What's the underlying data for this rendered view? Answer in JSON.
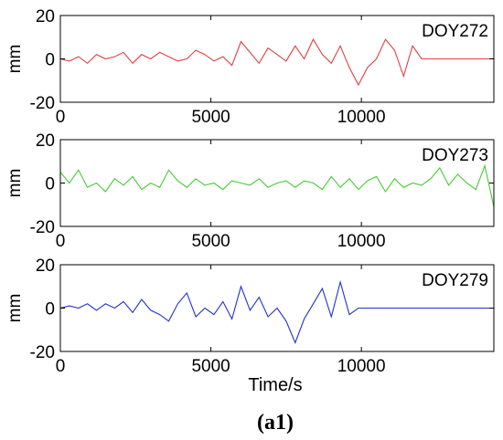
{
  "caption": "(a1)",
  "chart_data": [
    {
      "type": "line",
      "legend": "DOY272",
      "color": "#e04040",
      "ylabel": "mm",
      "xlabel": "",
      "xlim": [
        0,
        14400
      ],
      "ylim": [
        -20,
        20
      ],
      "xticks": [
        "0",
        "5000",
        "10000"
      ],
      "yticks": [
        "20",
        "0",
        "-20"
      ],
      "series": [
        {
          "x": [
            0,
            300,
            600,
            900,
            1200,
            1500,
            1800,
            2100,
            2400,
            2700,
            3000,
            3300,
            3600,
            3900,
            4200,
            4500,
            4800,
            5100,
            5400,
            5700,
            6000,
            6300,
            6600,
            6900,
            7200,
            7500,
            7800,
            8100,
            8400,
            8700,
            9000,
            9300,
            9600,
            9900,
            10200,
            10500,
            10800,
            11100,
            11400,
            11700,
            12000,
            14400
          ],
          "values": [
            0,
            -1,
            1,
            -2,
            2,
            0,
            1,
            3,
            -2,
            2,
            0,
            3,
            1,
            -1,
            0,
            4,
            2,
            -1,
            1,
            -3,
            8,
            3,
            -2,
            5,
            2,
            -1,
            6,
            0,
            9,
            2,
            -2,
            6,
            -4,
            -12,
            -4,
            0,
            9,
            4,
            -8,
            6,
            0,
            0
          ]
        }
      ]
    },
    {
      "type": "line",
      "legend": "DOY273",
      "color": "#44cc33",
      "ylabel": "mm",
      "xlabel": "",
      "xlim": [
        0,
        14400
      ],
      "ylim": [
        -20,
        20
      ],
      "xticks": [
        "0",
        "5000",
        "10000"
      ],
      "yticks": [
        "20",
        "0",
        "-20"
      ],
      "series": [
        {
          "x": [
            0,
            300,
            600,
            900,
            1200,
            1500,
            1800,
            2100,
            2400,
            2700,
            3000,
            3300,
            3600,
            3900,
            4200,
            4500,
            4800,
            5100,
            5400,
            5700,
            6000,
            6300,
            6600,
            6900,
            7200,
            7500,
            7800,
            8100,
            8400,
            8700,
            9000,
            9300,
            9600,
            9900,
            10200,
            10500,
            10800,
            11100,
            11400,
            11700,
            12000,
            12300,
            12600,
            12900,
            13200,
            13500,
            13800,
            14100,
            14400
          ],
          "values": [
            5,
            0,
            6,
            -2,
            0,
            -4,
            2,
            -1,
            3,
            -3,
            0,
            -2,
            6,
            1,
            -2,
            2,
            -1,
            0,
            -3,
            1,
            0,
            -1,
            2,
            -2,
            0,
            1,
            -2,
            1,
            0,
            -3,
            3,
            -2,
            2,
            -3,
            1,
            3,
            -4,
            2,
            -2,
            0,
            -1,
            2,
            7,
            -1,
            4,
            0,
            -3,
            8,
            -11
          ]
        }
      ]
    },
    {
      "type": "line",
      "legend": "DOY279",
      "color": "#2233cc",
      "ylabel": "mm",
      "xlabel": "Time/s",
      "xlim": [
        0,
        14400
      ],
      "ylim": [
        -20,
        20
      ],
      "xticks": [
        "0",
        "5000",
        "10000"
      ],
      "yticks": [
        "20",
        "0",
        "-20"
      ],
      "series": [
        {
          "x": [
            0,
            300,
            600,
            900,
            1200,
            1500,
            1800,
            2100,
            2400,
            2700,
            3000,
            3300,
            3600,
            3900,
            4200,
            4500,
            4800,
            5100,
            5400,
            5700,
            6000,
            6300,
            6600,
            6900,
            7200,
            7500,
            7800,
            8100,
            8400,
            8700,
            9000,
            9300,
            9600,
            9900,
            14400
          ],
          "values": [
            0,
            1,
            0,
            2,
            -1,
            2,
            0,
            3,
            -2,
            4,
            -1,
            -3,
            -6,
            2,
            7,
            -4,
            0,
            -3,
            3,
            -5,
            10,
            -1,
            5,
            -4,
            0,
            -6,
            -16,
            -5,
            2,
            9,
            -4,
            12,
            -3,
            0,
            0
          ]
        }
      ]
    }
  ]
}
